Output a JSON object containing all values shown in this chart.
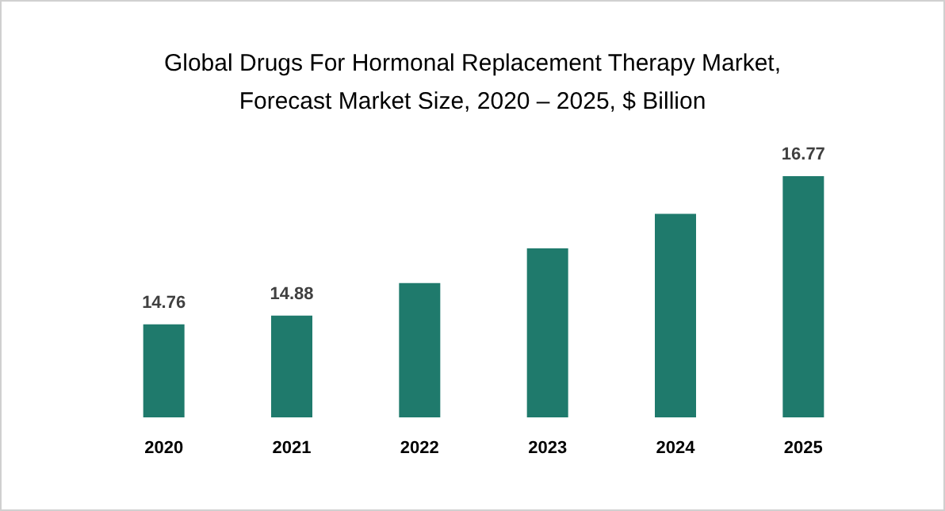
{
  "chart_data": {
    "type": "bar",
    "title": "Global Drugs For Hormonal Replacement Therapy Market,\nForecast Market Size, 2020 – 2025, $ Billion",
    "categories": [
      "2020",
      "2021",
      "2022",
      "2023",
      "2024",
      "2025"
    ],
    "values": [
      14.76,
      14.88,
      15.32,
      15.79,
      16.26,
      16.77
    ],
    "value_labels": [
      "14.76",
      "14.88",
      null,
      null,
      null,
      "16.77"
    ],
    "color": "#1f7a6c",
    "ylim": [
      13.5,
      16.77
    ],
    "tick_labels": "x",
    "grid": false
  }
}
